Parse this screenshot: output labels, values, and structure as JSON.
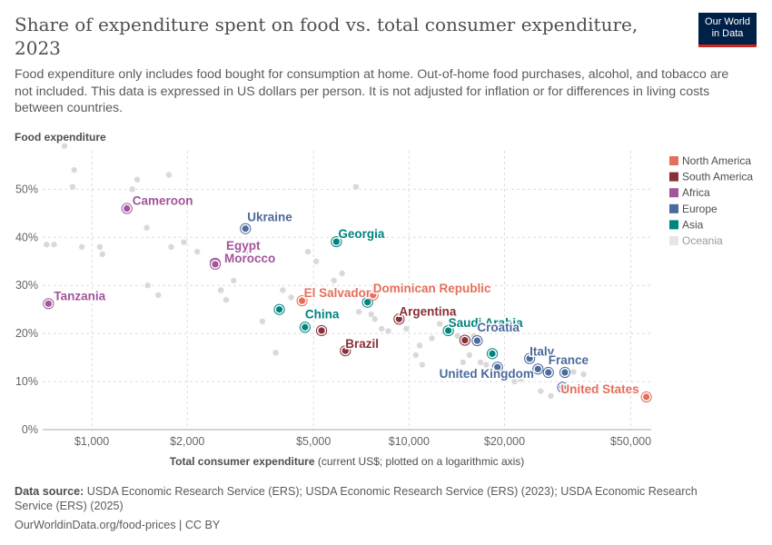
{
  "header": {
    "title": "Share of expenditure spent on food vs. total consumer expenditure, 2023",
    "subtitle": "Food expenditure only includes food bought for consumption at home. Out-of-home food purchases, alcohol, and tobacco are not included. This data is expressed in US dollars per person. It is not adjusted for inflation or for differences in living costs between countries.",
    "logo_line1": "Our World",
    "logo_line2": "in Data"
  },
  "footer": {
    "source_label": "Data source:",
    "source_text": "USDA Economic Research Service (ERS); USDA Economic Research Service (ERS) (2023); USDA Economic Research Service (ERS) (2025)",
    "credit": "OurWorldinData.org/food-prices | CC BY"
  },
  "colors": {
    "North America": "#e56e5a",
    "South America": "#883039",
    "Africa": "#a2559c",
    "Europe": "#4c6a9c",
    "Asia": "#00847e",
    "Oceania": "#e6e6e6",
    "background_point": "#d9d9d9"
  },
  "chart_data": {
    "type": "scatter",
    "ylabel": "Food expenditure",
    "xlabel": "Total consumer expenditure",
    "xlabel_note": "(current US$; plotted on a logarithmic axis)",
    "x_scale": "log",
    "xlim": [
      700,
      58000
    ],
    "ylim": [
      0,
      58
    ],
    "x_ticks": [
      {
        "value": 1000,
        "label": "$1,000"
      },
      {
        "value": 2000,
        "label": "$2,000"
      },
      {
        "value": 5000,
        "label": "$5,000"
      },
      {
        "value": 10000,
        "label": "$10,000"
      },
      {
        "value": 20000,
        "label": "$20,000"
      },
      {
        "value": 50000,
        "label": "$50,000"
      }
    ],
    "y_ticks": [
      {
        "value": 0,
        "label": "0%"
      },
      {
        "value": 10,
        "label": "10%"
      },
      {
        "value": 20,
        "label": "20%"
      },
      {
        "value": 30,
        "label": "30%"
      },
      {
        "value": 40,
        "label": "40%"
      },
      {
        "value": 50,
        "label": "50%"
      }
    ],
    "grid": true,
    "legend_position": "right",
    "legend": [
      "North America",
      "South America",
      "Africa",
      "Europe",
      "Asia",
      "Oceania"
    ],
    "highlighted": [
      {
        "name": "Cameroon",
        "region": "Africa",
        "x": 1290,
        "y": 46
      },
      {
        "name": "Tanzania",
        "region": "Africa",
        "x": 730,
        "y": 26.2
      },
      {
        "name": "Egypt",
        "region": "Africa",
        "x": 2450,
        "y": 34.6
      },
      {
        "name": "Morocco",
        "region": "Africa",
        "x": 2450,
        "y": 34.4
      },
      {
        "name": "Ukraine",
        "region": "Europe",
        "x": 3050,
        "y": 41.8
      },
      {
        "name": "Georgia",
        "region": "Asia",
        "x": 5900,
        "y": 39.1
      },
      {
        "name": "Dominican Republic",
        "region": "North America",
        "x": 7700,
        "y": 28.0
      },
      {
        "name": "El Salvador",
        "region": "North America",
        "x": 4600,
        "y": 26.8
      },
      {
        "name": "China",
        "region": "Asia",
        "x": 4700,
        "y": 21.3
      },
      {
        "name": "Argentina",
        "region": "South America",
        "x": 9300,
        "y": 23.0
      },
      {
        "name": "Brazil",
        "region": "South America",
        "x": 6300,
        "y": 16.4
      },
      {
        "name": "Saudi Arabia",
        "region": "Asia",
        "x": 13300,
        "y": 20.6
      },
      {
        "name": "Croatia",
        "region": "Europe",
        "x": 16400,
        "y": 18.5
      },
      {
        "name": "Italy",
        "region": "Europe",
        "x": 24000,
        "y": 14.8
      },
      {
        "name": "France",
        "region": "Europe",
        "x": 27500,
        "y": 11.9
      },
      {
        "name": "United Kingdom",
        "region": "Europe",
        "x": 19000,
        "y": 13.0
      },
      {
        "name": "United States",
        "region": "North America",
        "x": 56000,
        "y": 6.8
      }
    ],
    "unlabeled": [
      {
        "region": "Asia",
        "x": 3900,
        "y": 25.0
      },
      {
        "region": "Asia",
        "x": 7400,
        "y": 26.5
      },
      {
        "region": "Asia",
        "x": 18300,
        "y": 15.8
      },
      {
        "region": "South America",
        "x": 5300,
        "y": 20.6
      },
      {
        "region": "South America",
        "x": 15000,
        "y": 18.6
      },
      {
        "region": "Europe",
        "x": 25500,
        "y": 12.6
      },
      {
        "region": "Europe",
        "x": 31000,
        "y": 11.9
      },
      {
        "region": "Europe",
        "x": 30500,
        "y": 8.8
      }
    ],
    "other_points": [
      [
        820,
        59
      ],
      [
        880,
        54
      ],
      [
        870,
        50.5
      ],
      [
        930,
        38
      ],
      [
        760,
        38.5
      ],
      [
        720,
        38.5
      ],
      [
        1060,
        38
      ],
      [
        1080,
        36.5
      ],
      [
        1390,
        52
      ],
      [
        1340,
        50
      ],
      [
        1490,
        42
      ],
      [
        1500,
        30
      ],
      [
        1620,
        28
      ],
      [
        1750,
        53
      ],
      [
        1780,
        38
      ],
      [
        1950,
        39
      ],
      [
        2150,
        37
      ],
      [
        2400,
        35
      ],
      [
        2550,
        29
      ],
      [
        2550,
        29
      ],
      [
        2650,
        27
      ],
      [
        2800,
        31
      ],
      [
        3100,
        37
      ],
      [
        3450,
        22.5
      ],
      [
        3800,
        16
      ],
      [
        4000,
        29
      ],
      [
        4250,
        27.5
      ],
      [
        4800,
        37
      ],
      [
        5100,
        35
      ],
      [
        5800,
        31
      ],
      [
        6150,
        32.5
      ],
      [
        6800,
        50.5
      ],
      [
        6950,
        24.5
      ],
      [
        7600,
        24
      ],
      [
        7800,
        23
      ],
      [
        8200,
        21
      ],
      [
        8600,
        20.5
      ],
      [
        9800,
        21
      ],
      [
        10500,
        15.5
      ],
      [
        10800,
        17.5
      ],
      [
        11000,
        13.5
      ],
      [
        11800,
        19
      ],
      [
        12500,
        22
      ],
      [
        13200,
        21
      ],
      [
        14200,
        19.5
      ],
      [
        14800,
        14
      ],
      [
        15500,
        15.5
      ],
      [
        16000,
        19.5
      ],
      [
        16800,
        14
      ],
      [
        17500,
        13.5
      ],
      [
        20500,
        11
      ],
      [
        21500,
        10
      ],
      [
        22500,
        10.5
      ],
      [
        26000,
        8
      ],
      [
        28000,
        7
      ],
      [
        33000,
        12
      ],
      [
        35500,
        11.5
      ]
    ]
  }
}
